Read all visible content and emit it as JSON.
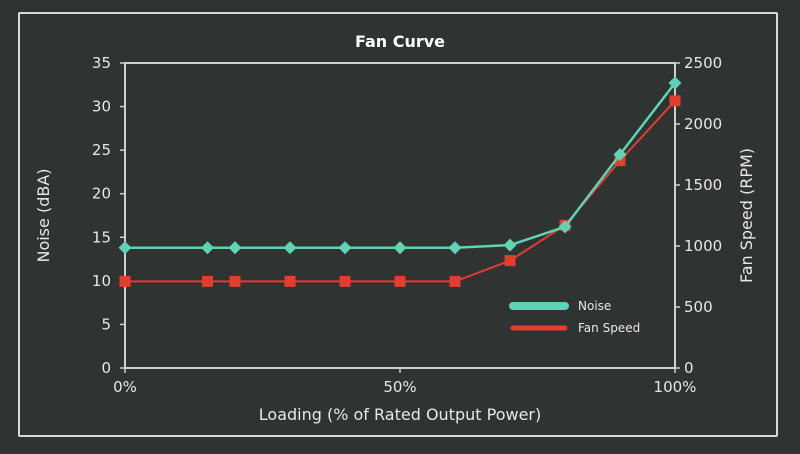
{
  "chart_data": {
    "type": "line",
    "title": "Fan Curve",
    "xlabel": "Loading (% of Rated Output Power)",
    "ylabel": "Noise (dBA)",
    "y2label": "Fan Speed (RPM)",
    "xlim": [
      0,
      100
    ],
    "ylim": [
      0,
      35
    ],
    "y2lim": [
      0,
      2500
    ],
    "x_ticks": [
      0,
      50,
      100
    ],
    "x_tick_labels": [
      "0%",
      "50%",
      "100%"
    ],
    "y_ticks": [
      0,
      5,
      10,
      15,
      20,
      25,
      30,
      35
    ],
    "y2_ticks": [
      0,
      500,
      1000,
      1500,
      2000,
      2500
    ],
    "grid": false,
    "legend_position": "bottom-right",
    "series": [
      {
        "name": "Noise",
        "axis": "left",
        "color": "#5fd3b3",
        "marker": "diamond",
        "x": [
          0,
          15,
          20,
          30,
          40,
          50,
          60,
          70,
          80,
          90,
          100
        ],
        "values": [
          13.8,
          13.8,
          13.8,
          13.8,
          13.8,
          13.8,
          13.8,
          14.1,
          16.2,
          24.5,
          32.7
        ]
      },
      {
        "name": "Fan Speed",
        "axis": "right",
        "color": "#e23d2f",
        "marker": "square",
        "x": [
          0,
          15,
          20,
          30,
          40,
          50,
          60,
          70,
          80,
          90,
          100
        ],
        "values": [
          710,
          710,
          710,
          710,
          710,
          710,
          710,
          880,
          1170,
          1700,
          2190
        ]
      }
    ]
  }
}
